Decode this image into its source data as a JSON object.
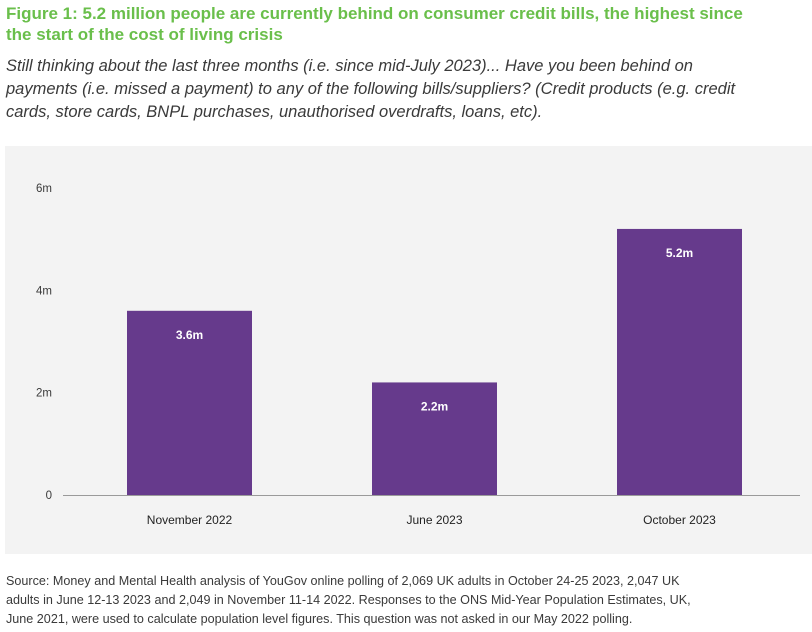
{
  "figure": {
    "title_line1": "Figure 1: 5.2 million people are currently behind on consumer credit bills, the highest since",
    "title_line2": "the start of the cost of living crisis",
    "question_lines": [
      "Still thinking about the last three months (i.e. since mid-July 2023)... Have you been behind on",
      "payments (i.e. missed a payment) to any of the following bills/suppliers? (Credit products (e.g. credit",
      "cards, store cards, BNPL purchases, unauthorised overdrafts, loans, etc)."
    ],
    "source_lines": [
      "Source: Money and Mental Health analysis of YouGov online polling of 2,069 UK adults in October 24-25 2023, 2,047 UK",
      "adults in June 12-13 2023 and 2,049 in November 11-14 2022. Responses to the ONS Mid-Year Population Estimates, UK,",
      "June 2021, were used to calculate population level figures. This question was not asked in our May 2022 polling."
    ]
  },
  "chart_data": {
    "type": "bar",
    "categories": [
      "November 2022",
      "June 2023",
      "October 2023"
    ],
    "values": [
      3.6,
      2.2,
      5.2
    ],
    "data_labels": [
      "3.6m",
      "2.2m",
      "5.2m"
    ],
    "title": "",
    "xlabel": "",
    "ylabel": "",
    "ylim": [
      0,
      6
    ],
    "yticks": [
      0,
      2,
      4,
      6
    ],
    "ytick_labels": [
      "0",
      "2m",
      "4m",
      "6m"
    ],
    "grid": false,
    "legend": "none",
    "bar_color": "#663a8c",
    "label_color": "#ffffff"
  },
  "colors": {
    "title": "#6abf4b",
    "panel_background": "#f3f3f3",
    "axis": "#9a9a9a",
    "text": "#3a3a3a"
  }
}
